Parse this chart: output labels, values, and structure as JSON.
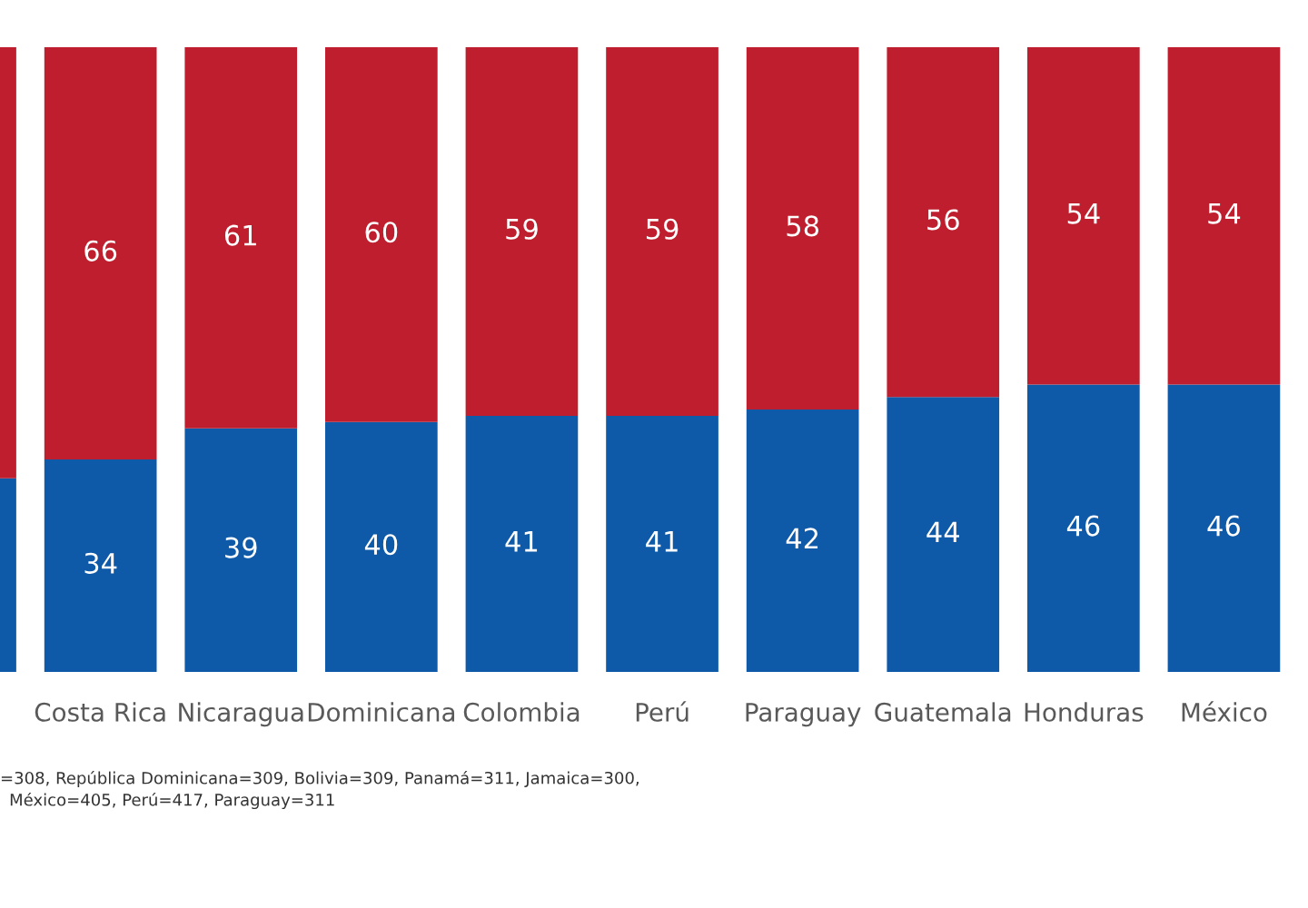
{
  "chart_data": {
    "type": "bar",
    "stacked": true,
    "categories": [
      null,
      "Costa Rica",
      "Nicaragua",
      "Dominicana",
      "Colombia",
      "Perú",
      "Paraguay",
      "Guatemala",
      "Honduras",
      "México"
    ],
    "series": [
      {
        "color": "#0f5aa8",
        "values": [
          31,
          34,
          39,
          40,
          41,
          41,
          42,
          44,
          46,
          46
        ],
        "value_labels": [
          null,
          "34",
          "39",
          "40",
          "41",
          "41",
          "42",
          "44",
          "46",
          "46"
        ]
      },
      {
        "color": "#be1e2d",
        "values": [
          69,
          66,
          61,
          60,
          59,
          59,
          58,
          56,
          54,
          54
        ],
        "value_labels": [
          null,
          "66",
          "61",
          "60",
          "59",
          "59",
          "58",
          "56",
          "54",
          "54"
        ]
      }
    ],
    "annotations": [
      "=308, República Dominicana=309, Bolivia=309, Panamá=311, Jamaica=300,",
      "México=405, Perú=417, Paraguay=311"
    ],
    "grid": false,
    "legend": false
  }
}
